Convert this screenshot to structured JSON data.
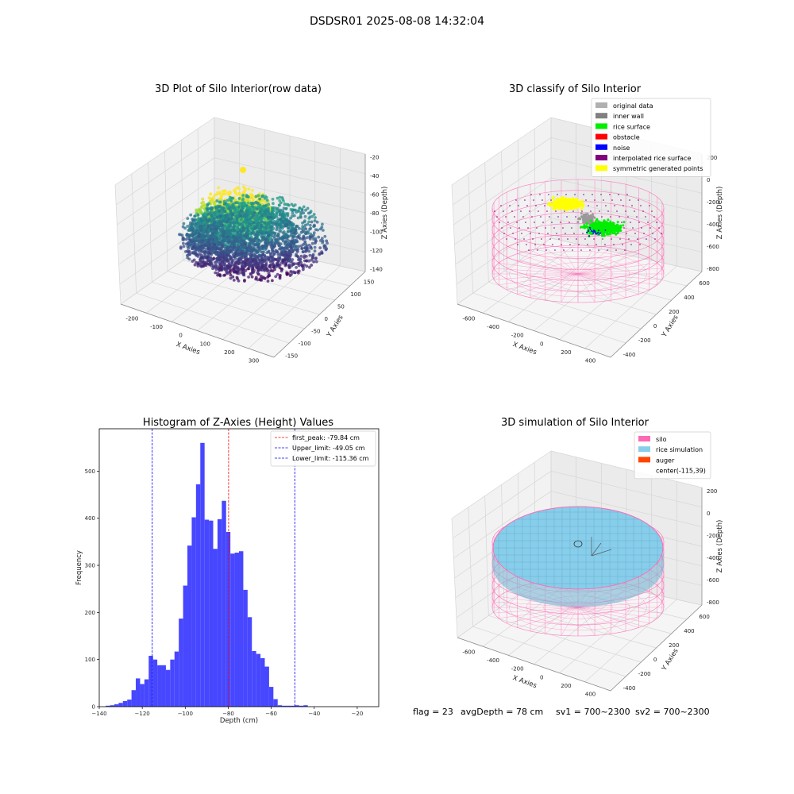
{
  "title": "DSDSR01 2025-08-08 14:32:04",
  "chart_data": [
    {
      "type": "scatter",
      "projection": "3d",
      "title": "3D Plot of Silo Interior(row data)",
      "xlabel": "X Axies",
      "ylabel": "Y Axies",
      "zlabel": "Z Axies (Depth)",
      "xticks": [
        -200,
        -100,
        0,
        100,
        200,
        300
      ],
      "yticks": [
        -150,
        -100,
        -50,
        0,
        50,
        100,
        150
      ],
      "zticks": [
        -20,
        -40,
        -60,
        -80,
        -100,
        -120,
        -140
      ],
      "colormap": "viridis",
      "grid": true
    },
    {
      "type": "scatter",
      "projection": "3d",
      "title": "3D classify of Silo Interior",
      "xlabel": "X Axies",
      "ylabel": "Y Axies",
      "zlabel": "Z Axies (Depth)",
      "xticks": [
        -600,
        -400,
        -200,
        0,
        200,
        400
      ],
      "yticks": [
        -400,
        -200,
        0,
        200,
        400,
        600
      ],
      "zticks": [
        200,
        0,
        -200,
        -400,
        -600,
        -800
      ],
      "legend_position": "top-right",
      "legend": [
        {
          "label": "original data",
          "color": "#b0b0b0"
        },
        {
          "label": "inner wall",
          "color": "#808080"
        },
        {
          "label": "rice surface",
          "color": "#00ee00"
        },
        {
          "label": "obstacle",
          "color": "#ff0000"
        },
        {
          "label": "noise",
          "color": "#0000ff"
        },
        {
          "label": "interpolated rice surface",
          "color": "#800080"
        },
        {
          "label": "symmetric generated points",
          "color": "#ffff00"
        }
      ],
      "grid": true
    },
    {
      "type": "bar",
      "subtype": "histogram",
      "title": "Histogram of Z-Axies (Height) Values",
      "xlabel": "Depth (cm)",
      "ylabel": "Frequency",
      "xlim": [
        -140,
        -10
      ],
      "ylim": [
        0,
        590
      ],
      "xticks": [
        -140,
        -120,
        -100,
        -80,
        -60,
        -40,
        -20
      ],
      "yticks": [
        0,
        100,
        200,
        300,
        400,
        500
      ],
      "bin_start": -137,
      "bin_width": 2,
      "values": [
        2,
        3,
        5,
        8,
        12,
        15,
        35,
        60,
        48,
        58,
        108,
        100,
        88,
        88,
        78,
        100,
        117,
        187,
        257,
        342,
        402,
        472,
        560,
        397,
        395,
        335,
        398,
        437,
        371,
        325,
        327,
        330,
        248,
        190,
        118,
        112,
        103,
        85,
        42,
        16,
        3,
        2,
        2,
        2,
        3,
        2,
        3
      ],
      "bar_color": "#4747ff",
      "legend_position": "top-right",
      "lines": [
        {
          "label": "first_peak: -79.84 cm",
          "x": -79.84,
          "color": "#ff0000"
        },
        {
          "label": "Upper_limit: -49.05 cm",
          "x": -49.05,
          "color": "#0000ff"
        },
        {
          "label": "Lower_limit: -115.36 cm",
          "x": -115.36,
          "color": "#0000ff"
        }
      ]
    },
    {
      "type": "scatter",
      "projection": "3d",
      "title": "3D simulation of Silo Interior",
      "xlabel": "X Axies",
      "ylabel": "Y Axies",
      "zlabel": "Z Axies (Depth)",
      "xticks": [
        -600,
        -400,
        -200,
        0,
        200,
        400
      ],
      "yticks": [
        -400,
        -200,
        0,
        200,
        400,
        600
      ],
      "zticks": [
        200,
        0,
        -200,
        -400,
        -600,
        -800
      ],
      "legend_position": "top-right",
      "legend": [
        {
          "label": "silo",
          "color": "#ff69b4"
        },
        {
          "label": "rice simulation",
          "color": "#87ceeb"
        },
        {
          "label": "auger",
          "color": "#ff4500"
        },
        {
          "label": "center(-115,39)",
          "color": ""
        }
      ],
      "grid": true
    }
  ],
  "stats": {
    "flag": "flag = 23",
    "avg_depth": "avgDepth = 78 cm",
    "sv1": "sv1 = 700~2300",
    "sv2": "sv2 = 700~2300"
  }
}
